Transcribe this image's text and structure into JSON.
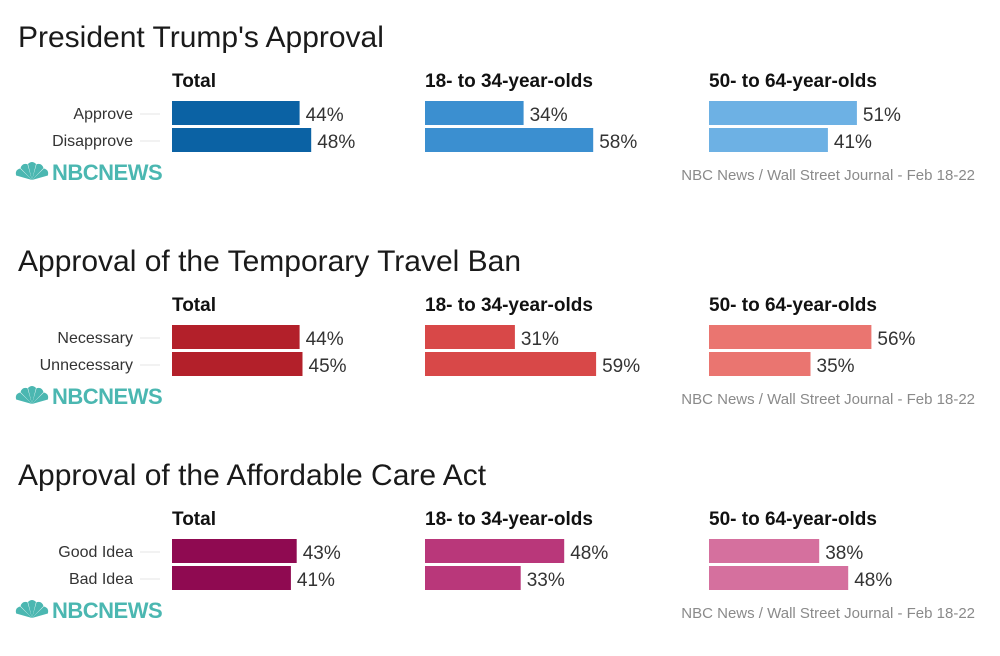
{
  "brand": {
    "name": "NBCNEWS",
    "color": "#4bb7b1"
  },
  "source": "NBC News / Wall Street Journal - Feb 18-22",
  "chart_data": [
    {
      "type": "bar",
      "title": "President Trump's Approval",
      "categories": [
        "Approve",
        "Disapprove"
      ],
      "series": [
        {
          "name": "Total",
          "values": [
            44,
            48
          ],
          "color": "#0b62a4"
        },
        {
          "name": "18- to 34-year-olds",
          "values": [
            34,
            58
          ],
          "color": "#3b8fd0"
        },
        {
          "name": "50- to 64-year-olds",
          "values": [
            51,
            41
          ],
          "color": "#6db1e4"
        }
      ],
      "value_suffix": "%"
    },
    {
      "type": "bar",
      "title": "Approval of the Temporary Travel Ban",
      "categories": [
        "Necessary",
        "Unnecessary"
      ],
      "series": [
        {
          "name": "Total",
          "values": [
            44,
            45
          ],
          "color": "#b3202a"
        },
        {
          "name": "18- to 34-year-olds",
          "values": [
            31,
            59
          ],
          "color": "#d84848"
        },
        {
          "name": "50- to 64-year-olds",
          "values": [
            56,
            35
          ],
          "color": "#ea7570"
        }
      ],
      "value_suffix": "%"
    },
    {
      "type": "bar",
      "title": "Approval of the Affordable Care Act",
      "categories": [
        "Good Idea",
        "Bad Idea"
      ],
      "series": [
        {
          "name": "Total",
          "values": [
            43,
            41
          ],
          "color": "#8f0a51"
        },
        {
          "name": "18- to 34-year-olds",
          "values": [
            48,
            33
          ],
          "color": "#b9377a"
        },
        {
          "name": "50- to 64-year-olds",
          "values": [
            38,
            48
          ],
          "color": "#d5709e"
        }
      ],
      "value_suffix": "%"
    }
  ]
}
